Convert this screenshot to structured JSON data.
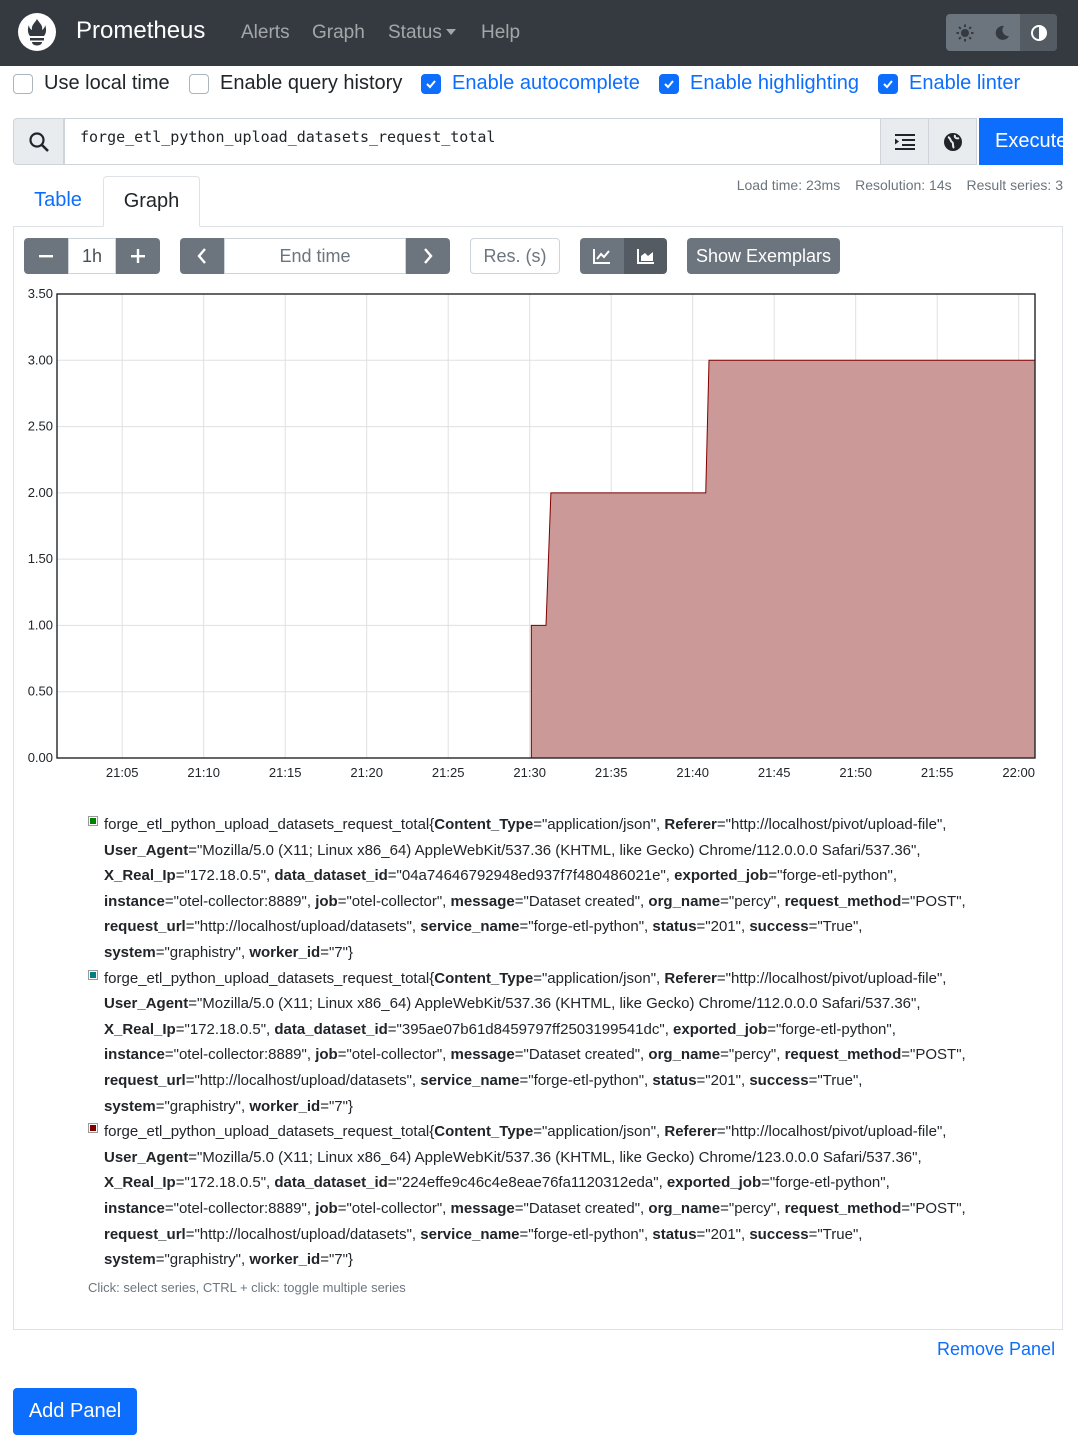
{
  "nav": {
    "brand": "Prometheus",
    "links": [
      "Alerts",
      "Graph",
      "Status",
      "Help"
    ]
  },
  "options": [
    {
      "label": "Use local time",
      "checked": false
    },
    {
      "label": "Enable query history",
      "checked": false
    },
    {
      "label": "Enable autocomplete",
      "checked": true
    },
    {
      "label": "Enable highlighting",
      "checked": true
    },
    {
      "label": "Enable linter",
      "checked": true
    }
  ],
  "query": {
    "expression": "forge_etl_python_upload_datasets_request_total",
    "execute_label": "Execute"
  },
  "stats": {
    "load_time": "Load time: 23ms",
    "resolution": "Resolution: 14s",
    "result_series": "Result series: 3"
  },
  "tabs": {
    "table": "Table",
    "graph": "Graph"
  },
  "graph_controls": {
    "range": "1h",
    "end_time_placeholder": "End time",
    "resolution_placeholder": "Res. (s)",
    "exemplars_label": "Show Exemplars"
  },
  "colors": {
    "series_green": "#008000",
    "series_teal": "#008080",
    "series_red": "#800000",
    "fill_green": "#9ccc94",
    "fill_teal": "#9ccccc",
    "fill_red": "#cc9999",
    "accent": "#0d6efd"
  },
  "chart_data": {
    "type": "area",
    "stacked": true,
    "x_ticks": [
      "21:05",
      "21:10",
      "21:15",
      "21:20",
      "21:25",
      "21:30",
      "21:35",
      "21:40",
      "21:45",
      "21:50",
      "21:55",
      "22:00"
    ],
    "y_ticks": [
      "0.00",
      "0.50",
      "1.00",
      "1.50",
      "2.00",
      "2.50",
      "3.00",
      "3.50"
    ],
    "ylim": [
      0,
      3.5
    ],
    "xlim_minutes": [
      -4,
      56
    ],
    "series": [
      {
        "name": "green",
        "color": "#008000",
        "fill": "#9ccc94",
        "points": [
          [
            36.0,
            0
          ],
          [
            36.2,
            1
          ],
          [
            56,
            1
          ]
        ]
      },
      {
        "name": "teal",
        "color": "#008080",
        "fill": "#9ccccc",
        "points": [
          [
            26.0,
            0
          ],
          [
            26.2,
            1
          ],
          [
            35.8,
            1
          ],
          [
            36.0,
            0
          ]
        ]
      },
      {
        "name": "red",
        "color": "#800000",
        "fill": "#cc9999",
        "points": [
          [
            25.1,
            0
          ],
          [
            25.1,
            1
          ],
          [
            26.0,
            1
          ],
          [
            26.3,
            2
          ],
          [
            35.8,
            2
          ],
          [
            36.0,
            3
          ],
          [
            56,
            3
          ]
        ]
      }
    ],
    "title": "",
    "xlabel": "",
    "ylabel": ""
  },
  "legend": [
    {
      "metric": "forge_etl_python_upload_datasets_request_total",
      "labels": [
        {
          "k": "Content_Type",
          "v": "application/json"
        },
        {
          "k": "Referer",
          "v": "http://localhost/pivot/upload-file"
        },
        {
          "k": "User_Agent",
          "v": "Mozilla/5.0 (X11; Linux x86_64) AppleWebKit/537.36 (KHTML, like Gecko) Chrome/112.0.0.0 Safari/537.36"
        },
        {
          "k": "X_Real_Ip",
          "v": "172.18.0.5"
        },
        {
          "k": "data_dataset_id",
          "v": "04a74646792948ed937f7f480486021e"
        },
        {
          "k": "exported_job",
          "v": "forge-etl-python"
        },
        {
          "k": "instance",
          "v": "otel-collector:8889"
        },
        {
          "k": "job",
          "v": "otel-collector"
        },
        {
          "k": "message",
          "v": "Dataset created"
        },
        {
          "k": "org_name",
          "v": "percy"
        },
        {
          "k": "request_method",
          "v": "POST"
        },
        {
          "k": "request_url",
          "v": "http://localhost/upload/datasets"
        },
        {
          "k": "service_name",
          "v": "forge-etl-python"
        },
        {
          "k": "status",
          "v": "201"
        },
        {
          "k": "success",
          "v": "True"
        },
        {
          "k": "system",
          "v": "graphistry"
        },
        {
          "k": "worker_id",
          "v": "7"
        }
      ]
    },
    {
      "metric": "forge_etl_python_upload_datasets_request_total",
      "labels": [
        {
          "k": "Content_Type",
          "v": "application/json"
        },
        {
          "k": "Referer",
          "v": "http://localhost/pivot/upload-file"
        },
        {
          "k": "User_Agent",
          "v": "Mozilla/5.0 (X11; Linux x86_64) AppleWebKit/537.36 (KHTML, like Gecko) Chrome/112.0.0.0 Safari/537.36"
        },
        {
          "k": "X_Real_Ip",
          "v": "172.18.0.5"
        },
        {
          "k": "data_dataset_id",
          "v": "395ae07b61d8459797ff2503199541dc"
        },
        {
          "k": "exported_job",
          "v": "forge-etl-python"
        },
        {
          "k": "instance",
          "v": "otel-collector:8889"
        },
        {
          "k": "job",
          "v": "otel-collector"
        },
        {
          "k": "message",
          "v": "Dataset created"
        },
        {
          "k": "org_name",
          "v": "percy"
        },
        {
          "k": "request_method",
          "v": "POST"
        },
        {
          "k": "request_url",
          "v": "http://localhost/upload/datasets"
        },
        {
          "k": "service_name",
          "v": "forge-etl-python"
        },
        {
          "k": "status",
          "v": "201"
        },
        {
          "k": "success",
          "v": "True"
        },
        {
          "k": "system",
          "v": "graphistry"
        },
        {
          "k": "worker_id",
          "v": "7"
        }
      ]
    },
    {
      "metric": "forge_etl_python_upload_datasets_request_total",
      "labels": [
        {
          "k": "Content_Type",
          "v": "application/json"
        },
        {
          "k": "Referer",
          "v": "http://localhost/pivot/upload-file"
        },
        {
          "k": "User_Agent",
          "v": "Mozilla/5.0 (X11; Linux x86_64) AppleWebKit/537.36 (KHTML, like Gecko) Chrome/123.0.0.0 Safari/537.36"
        },
        {
          "k": "X_Real_Ip",
          "v": "172.18.0.5"
        },
        {
          "k": "data_dataset_id",
          "v": "224effe9c46c4e8eae76fa1120312eda"
        },
        {
          "k": "exported_job",
          "v": "forge-etl-python"
        },
        {
          "k": "instance",
          "v": "otel-collector:8889"
        },
        {
          "k": "job",
          "v": "otel-collector"
        },
        {
          "k": "message",
          "v": "Dataset created"
        },
        {
          "k": "org_name",
          "v": "percy"
        },
        {
          "k": "request_method",
          "v": "POST"
        },
        {
          "k": "request_url",
          "v": "http://localhost/upload/datasets"
        },
        {
          "k": "service_name",
          "v": "forge-etl-python"
        },
        {
          "k": "status",
          "v": "201"
        },
        {
          "k": "success",
          "v": "True"
        },
        {
          "k": "system",
          "v": "graphistry"
        },
        {
          "k": "worker_id",
          "v": "7"
        }
      ]
    }
  ],
  "legend_hint": "Click: select series, CTRL + click: toggle multiple series",
  "actions": {
    "remove_panel": "Remove Panel",
    "add_panel": "Add Panel"
  }
}
